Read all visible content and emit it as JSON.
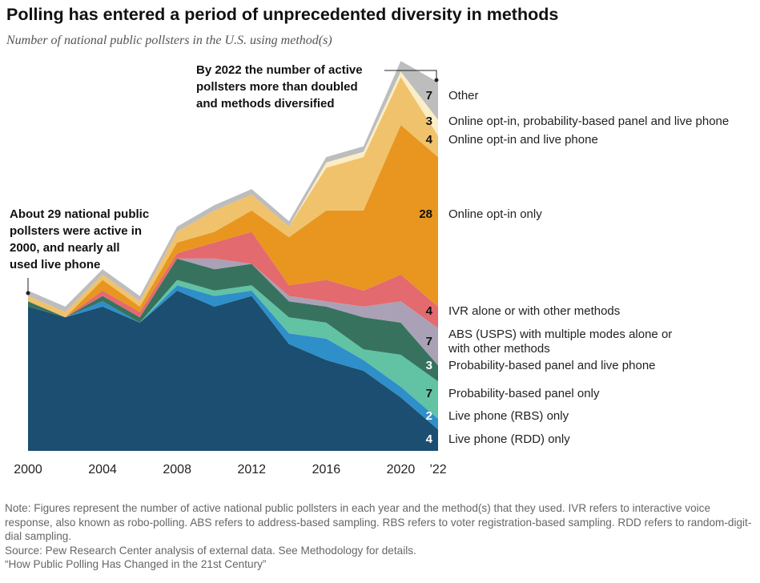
{
  "chart_data": {
    "type": "stacked_area",
    "title": "Polling has entered a period of unprecedented diversity in methods",
    "subtitle": "Number of national public pollsters in the U.S. using method(s)",
    "x": [
      2000,
      2002,
      2004,
      2006,
      2008,
      2010,
      2012,
      2014,
      2016,
      2018,
      2020,
      2022
    ],
    "xlim": [
      2000,
      2022
    ],
    "xticks": [
      2000,
      2004,
      2008,
      2012,
      2016,
      2020,
      {
        "value": 2022,
        "label": "’22"
      }
    ],
    "series": [
      {
        "name": "Live phone (RDD) only",
        "color": "#1b4e70",
        "values": [
          27,
          25,
          27,
          24,
          30,
          27,
          29,
          20,
          17,
          15,
          10,
          4
        ]
      },
      {
        "name": "Live phone (RBS) only",
        "color": "#2e8fc9",
        "values": [
          0,
          0,
          1,
          0,
          1,
          2,
          1,
          2,
          4,
          2,
          2,
          2
        ]
      },
      {
        "name": "Probability-based panel only",
        "color": "#62c2a4",
        "values": [
          0,
          0,
          0,
          0,
          1,
          1,
          1,
          3,
          3,
          2,
          6,
          7
        ]
      },
      {
        "name": "Probability-based panel and live phone",
        "color": "#37725f",
        "values": [
          1,
          0,
          1,
          1,
          4,
          4,
          4,
          3,
          3,
          6,
          6,
          3
        ]
      },
      {
        "name": "ABS (USPS) with multiple modes alone or with other methods",
        "color": "#aaa1b6",
        "values": [
          0,
          0,
          0,
          0,
          0,
          2,
          0,
          1,
          1,
          2,
          4,
          7
        ]
      },
      {
        "name": "IVR alone or with other methods",
        "color": "#e36a6e",
        "values": [
          0,
          0,
          1,
          1,
          1,
          3,
          6,
          2,
          4,
          3,
          5,
          4
        ]
      },
      {
        "name": "Online opt-in only",
        "color": "#e8961f",
        "values": [
          0,
          0,
          2,
          1,
          2,
          2,
          4,
          9,
          13,
          15,
          28,
          28
        ]
      },
      {
        "name": "Online opt-in and live phone",
        "color": "#f0c26b",
        "values": [
          1,
          1,
          1,
          1,
          2,
          4,
          3,
          2,
          8,
          10,
          9,
          4
        ]
      },
      {
        "name": "Online opt-in, probability-based panel and live phone",
        "color": "#fbedc6",
        "values": [
          0,
          0,
          0,
          0,
          0,
          0,
          0,
          0,
          1,
          1,
          1,
          3
        ]
      },
      {
        "name": "Other",
        "color": "#bdbdbd",
        "values": [
          1,
          1,
          1,
          1,
          1,
          1,
          1,
          1,
          1,
          1,
          2,
          7
        ]
      }
    ],
    "annotations": [
      {
        "lines": [
          "About 29 national public",
          "pollsters were active in",
          "2000, and nearly all",
          "used live phone"
        ]
      },
      {
        "lines": [
          "By 2022 the number of active",
          "pollsters more than doubled",
          "and methods diversified"
        ]
      }
    ]
  },
  "footer": {
    "note": "Note: Figures represent the number of active national public pollsters in each year and the method(s) that they used. IVR refers to interactive voice response, also known as robo-polling. ABS refers to address-based sampling. RBS refers to voter registration-based sampling. RDD refers to random-digit-dial sampling.",
    "source": "Source: Pew Research Center analysis of external data. See Methodology for details.",
    "report": "“How Public Polling Has Changed in the 21st Century”"
  }
}
